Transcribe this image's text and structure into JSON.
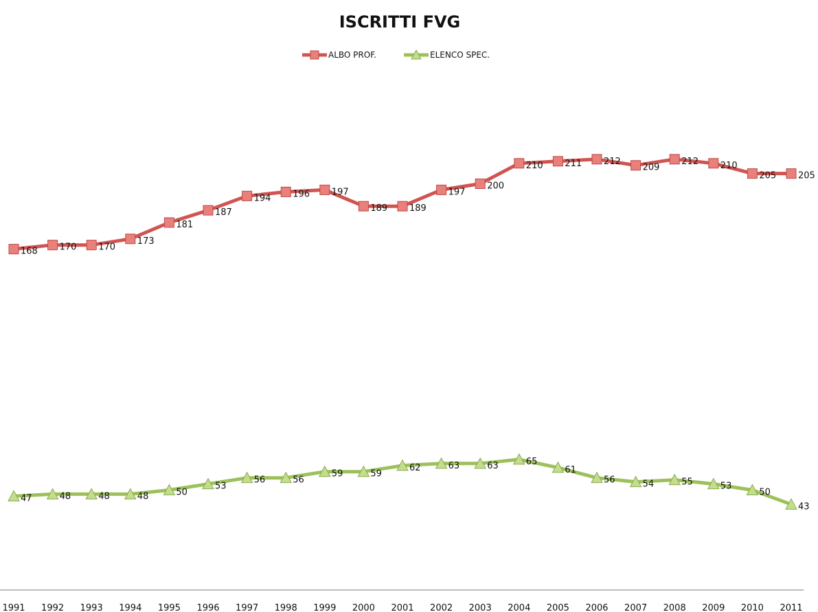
{
  "chart_data": {
    "type": "line",
    "title": "ISCRITTI FVG",
    "xlabel": "",
    "ylabel": "",
    "legend_position": "top-center",
    "grid": false,
    "ylim": [
      30,
      240
    ],
    "categories": [
      "1991",
      "1992",
      "1993",
      "1994",
      "1995",
      "1996",
      "1997",
      "1998",
      "1999",
      "2000",
      "2001",
      "2002",
      "2003",
      "2004",
      "2005",
      "2006",
      "2007",
      "2008",
      "2009",
      "2010",
      "2011"
    ],
    "series": [
      {
        "name": "ALBO PROF.",
        "color": "#d05552",
        "marker_color": "#e8807c",
        "marker": "square",
        "values": [
          168,
          170,
          170,
          173,
          181,
          187,
          194,
          196,
          197,
          189,
          189,
          197,
          200,
          210,
          211,
          212,
          209,
          212,
          210,
          205,
          205
        ]
      },
      {
        "name": "ELENCO SPEC.",
        "color": "#9cc15a",
        "marker_color": "#c3dd8f",
        "marker": "triangle",
        "values": [
          47,
          48,
          48,
          48,
          50,
          53,
          56,
          56,
          59,
          59,
          62,
          63,
          63,
          65,
          61,
          56,
          54,
          55,
          53,
          50,
          43
        ]
      }
    ]
  }
}
